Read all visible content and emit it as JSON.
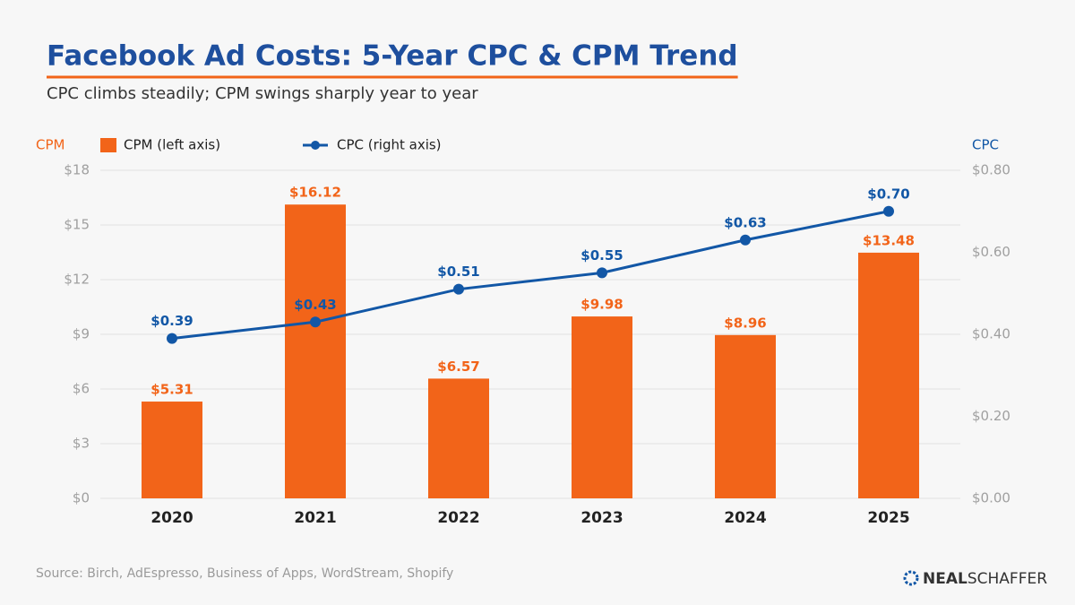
{
  "chart_data": {
    "type": "bar",
    "title": "Facebook Ad Costs: 5-Year CPC & CPM Trend",
    "subtitle": "CPC climbs steadily; CPM swings sharply year to year",
    "ylabel": "CPM",
    "y2label": "CPC",
    "categories": [
      "2020",
      "2021",
      "2022",
      "2023",
      "2024",
      "2025"
    ],
    "series": [
      {
        "name": "CPM (left axis)",
        "type": "bar",
        "color": "#f26419",
        "values": [
          5.31,
          16.12,
          6.57,
          9.98,
          8.96,
          13.48
        ],
        "value_labels": [
          "$5.31",
          "$16.12",
          "$6.57",
          "$9.98",
          "$8.96",
          "$13.48"
        ]
      },
      {
        "name": "CPC (right axis)",
        "type": "line",
        "axis": "y2",
        "color": "#1257a6",
        "values": [
          0.39,
          0.43,
          0.51,
          0.55,
          0.63,
          0.7
        ],
        "value_labels": [
          "$0.39",
          "$0.43",
          "$0.51",
          "$0.55",
          "$0.63",
          "$0.70"
        ]
      }
    ],
    "ylim": [
      0,
      18
    ],
    "yticks": [
      {
        "value": 0,
        "label": "$0"
      },
      {
        "value": 3,
        "label": "$3"
      },
      {
        "value": 6,
        "label": "$6"
      },
      {
        "value": 9,
        "label": "$9"
      },
      {
        "value": 12,
        "label": "$12"
      },
      {
        "value": 15,
        "label": "$15"
      },
      {
        "value": 18,
        "label": "$18"
      }
    ],
    "y2lim": [
      0,
      0.8
    ],
    "y2ticks": [
      {
        "value": 0,
        "label": "$0.00"
      },
      {
        "value": 0.2,
        "label": "$0.20"
      },
      {
        "value": 0.4,
        "label": "$0.40"
      },
      {
        "value": 0.6,
        "label": "$0.60"
      },
      {
        "value": 0.8,
        "label": "$0.80"
      }
    ],
    "grid": true,
    "source": "Source: Birch, AdEspresso, Business of Apps, WordStream, Shopify",
    "brand": {
      "bold": "NEAL",
      "light": "SCHAFFER"
    }
  }
}
